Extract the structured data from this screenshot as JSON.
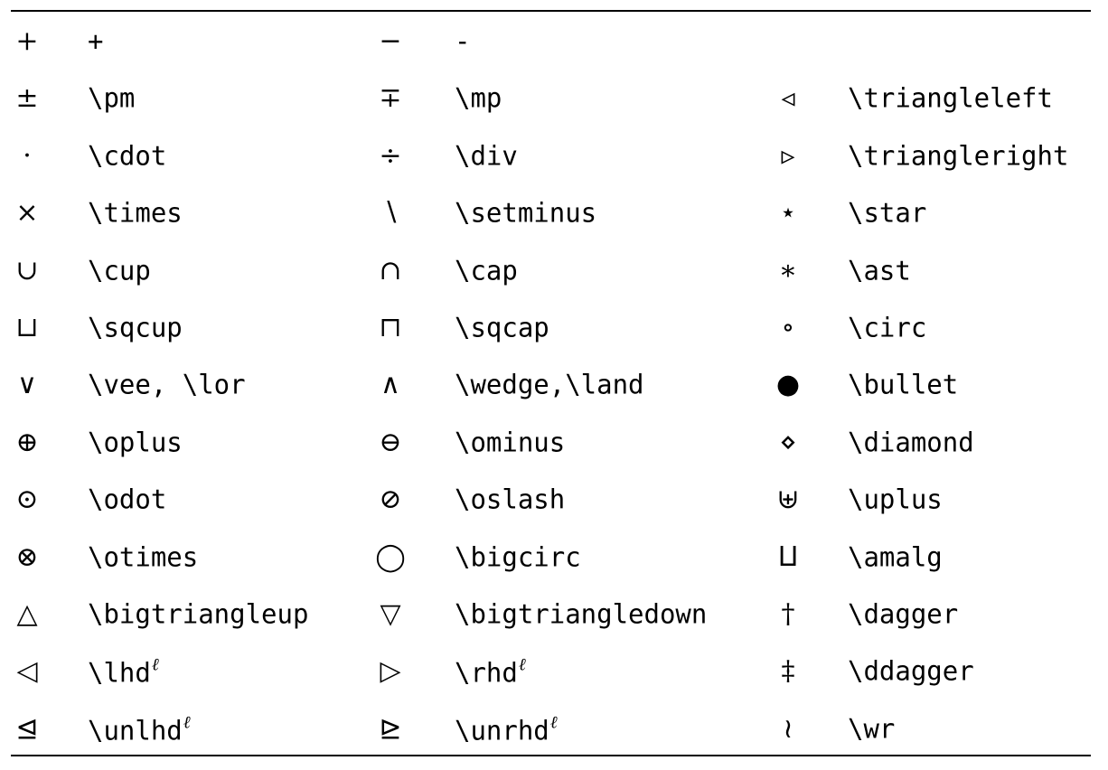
{
  "columns": [
    {
      "rows": [
        {
          "symbol": "+",
          "command": "+"
        },
        {
          "symbol": "±",
          "command": "\\pm"
        },
        {
          "symbol": "·",
          "command": "\\cdot"
        },
        {
          "symbol": "×",
          "command": "\\times"
        },
        {
          "symbol": "∪",
          "command": "\\cup"
        },
        {
          "symbol": "⊔",
          "command": "\\sqcup"
        },
        {
          "symbol": "∨",
          "command": "\\vee, \\lor"
        },
        {
          "symbol": "⊕",
          "command": "\\oplus"
        },
        {
          "symbol": "⊙",
          "command": "\\odot"
        },
        {
          "symbol": "⊗",
          "command": "\\otimes"
        },
        {
          "symbol": "△",
          "command": "\\bigtriangleup"
        },
        {
          "symbol": "◁",
          "command": "\\lhd",
          "sup": "ℓ"
        },
        {
          "symbol": "⊴",
          "command": "\\unlhd",
          "sup": "ℓ"
        }
      ]
    },
    {
      "rows": [
        {
          "symbol": "−",
          "command": "-"
        },
        {
          "symbol": "∓",
          "command": "\\mp"
        },
        {
          "symbol": "÷",
          "command": "\\div"
        },
        {
          "symbol": "∖",
          "command": "\\setminus"
        },
        {
          "symbol": "∩",
          "command": "\\cap"
        },
        {
          "symbol": "⊓",
          "command": "\\sqcap"
        },
        {
          "symbol": "∧",
          "command": "\\wedge,\\land"
        },
        {
          "symbol": "⊖",
          "command": "\\ominus"
        },
        {
          "symbol": "⊘",
          "command": "\\oslash"
        },
        {
          "symbol": "◯",
          "command": "\\bigcirc"
        },
        {
          "symbol": "▽",
          "command": "\\bigtriangledown"
        },
        {
          "symbol": "▷",
          "command": "\\rhd",
          "sup": "ℓ"
        },
        {
          "symbol": "⊵",
          "command": "\\unrhd",
          "sup": "ℓ"
        }
      ]
    },
    {
      "rows": [
        null,
        {
          "symbol": "◃",
          "command": "\\triangleleft"
        },
        {
          "symbol": "▹",
          "command": "\\triangleright"
        },
        {
          "symbol": "⋆",
          "command": "\\star"
        },
        {
          "symbol": "∗",
          "command": "\\ast"
        },
        {
          "symbol": "∘",
          "command": "\\circ"
        },
        {
          "symbol": "●",
          "command": "\\bullet"
        },
        {
          "symbol": "⋄",
          "command": "\\diamond"
        },
        {
          "symbol": "⊎",
          "command": "\\uplus"
        },
        {
          "symbol": "⨿",
          "command": "\\amalg"
        },
        {
          "symbol": "†",
          "command": "\\dagger"
        },
        {
          "symbol": "‡",
          "command": "\\ddagger"
        },
        {
          "symbol": "≀",
          "command": "\\wr"
        }
      ]
    }
  ]
}
